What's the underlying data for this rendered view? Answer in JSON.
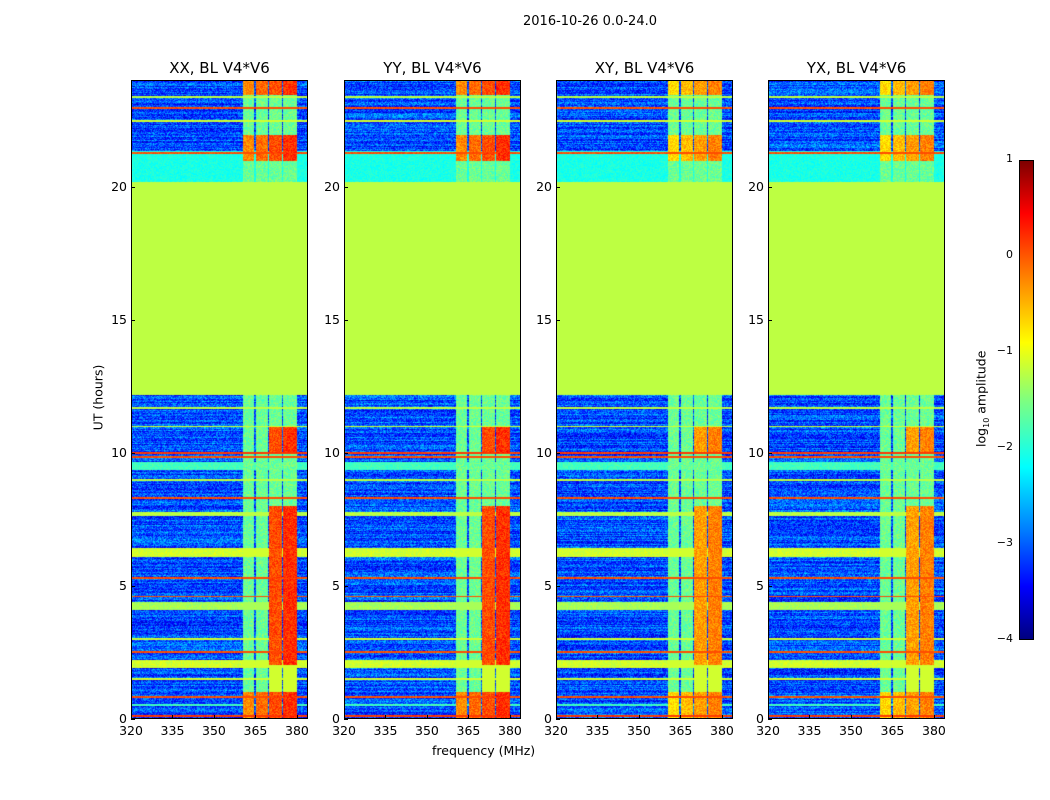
{
  "chart_data": {
    "type": "heatmap",
    "title": "2016-10-26 0.0-24.0",
    "xlabel": "frequency (MHz)",
    "ylabel": "UT (hours)",
    "xlim": [
      320,
      384
    ],
    "ylim": [
      0,
      24
    ],
    "xticks": [
      "320",
      "335",
      "350",
      "365",
      "380"
    ],
    "xtick_values": [
      320,
      335,
      350,
      365,
      380
    ],
    "yticks": [
      "0",
      "5",
      "10",
      "15",
      "20"
    ],
    "ytick_values": [
      0,
      5,
      10,
      15,
      20
    ],
    "panels": [
      {
        "title": "XX, BL V4*V6"
      },
      {
        "title": "YY, BL V4*V6"
      },
      {
        "title": "XY, BL V4*V6"
      },
      {
        "title": "YX, BL V4*V6"
      }
    ],
    "colorbar": {
      "label": "log10 amplitude",
      "label_main": "log",
      "label_sub": "10",
      "label_rest": " amplitude",
      "range": [
        -4,
        1
      ],
      "ticks": [
        "−4",
        "−3",
        "−2",
        "−1",
        "0",
        "1"
      ],
      "tick_values": [
        -4,
        -3,
        -2,
        -1,
        0,
        1
      ],
      "colormap": "jet"
    },
    "background_level": -3,
    "flagged_interval_hours": [
      12.2,
      20.2
    ],
    "flagged_level": -1.2,
    "bright_channels_mhz": [
      [
        360.5,
        364.5
      ],
      [
        365,
        369.5
      ],
      [
        370,
        374.5
      ],
      [
        375,
        380
      ]
    ],
    "horizontal_lines": [
      {
        "t": 0.1,
        "w": 0.08,
        "v": 0.1
      },
      {
        "t": 0.5,
        "w": 0.08,
        "v": -1.8
      },
      {
        "t": 0.8,
        "w": 0.06,
        "v": 0
      },
      {
        "t": 1.5,
        "w": 0.08,
        "v": -1.1
      },
      {
        "t": 2.05,
        "w": 0.3,
        "v": -1.1
      },
      {
        "t": 2.5,
        "w": 0.06,
        "v": 0
      },
      {
        "t": 3.0,
        "w": 0.06,
        "v": -1.1
      },
      {
        "t": 4.25,
        "w": 0.3,
        "v": -1.3
      },
      {
        "t": 4.6,
        "w": 0.06,
        "v": 0
      },
      {
        "t": 5.3,
        "w": 0.06,
        "v": 0
      },
      {
        "t": 6.25,
        "w": 0.35,
        "v": -1.1
      },
      {
        "t": 7.7,
        "w": 0.15,
        "v": -1.2
      },
      {
        "t": 8.3,
        "w": 0.06,
        "v": 0
      },
      {
        "t": 9.0,
        "w": 0.08,
        "v": -1.2
      },
      {
        "t": 9.5,
        "w": 0.3,
        "v": -1.8
      },
      {
        "t": 9.85,
        "w": 0.08,
        "v": 0
      },
      {
        "t": 10.0,
        "w": 0.05,
        "v": 0.1
      },
      {
        "t": 11.0,
        "w": 0.06,
        "v": -1.1
      },
      {
        "t": 11.7,
        "w": 0.06,
        "v": -1.2
      },
      {
        "t": 20.8,
        "w": 1.2,
        "v": -2.0
      },
      {
        "t": 21.3,
        "w": 0.08,
        "v": 0
      },
      {
        "t": 22.5,
        "w": 0.08,
        "v": -1.1
      },
      {
        "t": 23.0,
        "w": 0.06,
        "v": 0
      },
      {
        "t": 23.4,
        "w": 0.08,
        "v": -1.2
      }
    ]
  }
}
